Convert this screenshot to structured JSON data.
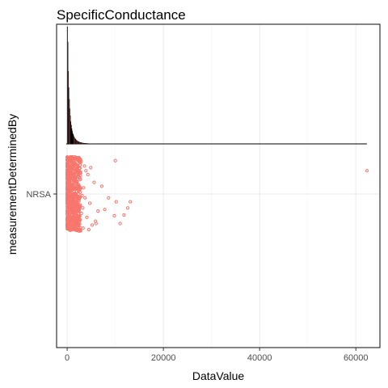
{
  "chart_data": {
    "type": "scatter",
    "title": "SpecificConductance",
    "xlabel": "DataValue",
    "ylabel": "measurementDeterminedBy",
    "x_ticks": [
      0,
      20000,
      40000,
      60000
    ],
    "x_tick_labels": [
      "0",
      "20000",
      "40000",
      "60000"
    ],
    "xlim": [
      -2200,
      65000
    ],
    "categories": [
      "NRSA"
    ],
    "grid": true,
    "legend": "none",
    "series": [
      {
        "category": "NRSA",
        "color": "#F8766D",
        "dense_range": [
          0,
          2800
        ],
        "points": [
          [
            3100,
            0.02
          ],
          [
            3400,
            -0.08
          ],
          [
            3700,
            0.05
          ],
          [
            4100,
            0.3
          ],
          [
            4300,
            -0.25
          ],
          [
            4700,
            0.12
          ],
          [
            4900,
            -0.34
          ],
          [
            5200,
            0.4
          ],
          [
            5600,
            -0.15
          ],
          [
            6000,
            0.38
          ],
          [
            6400,
            0.22
          ],
          [
            2900,
            -0.42
          ],
          [
            3300,
            0.44
          ],
          [
            3600,
            -0.36
          ],
          [
            4500,
            0.46
          ],
          [
            5900,
            0.35
          ],
          [
            3900,
            -0.3
          ],
          [
            2950,
            0.25
          ],
          [
            3250,
            0.18
          ],
          [
            7200,
            -0.1
          ],
          [
            7800,
            0.2
          ],
          [
            8600,
            0.05
          ],
          [
            9800,
            0.28
          ],
          [
            10000,
            -0.43
          ],
          [
            10200,
            0.1
          ],
          [
            11800,
            0.27
          ],
          [
            12600,
            0.18
          ],
          [
            13100,
            0.1
          ],
          [
            11000,
            0.38
          ],
          [
            62300,
            -0.3
          ]
        ]
      }
    ],
    "histogram": {
      "bin_width": 100,
      "bar_fill": "#F8766D",
      "outline": "#000000",
      "relative_counts": [
        1.0,
        0.87,
        0.62,
        0.48,
        0.38,
        0.3,
        0.24,
        0.19,
        0.16,
        0.13,
        0.11,
        0.09,
        0.08,
        0.07,
        0.06,
        0.05,
        0.045,
        0.04,
        0.035,
        0.03,
        0.027,
        0.024,
        0.021,
        0.019,
        0.017,
        0.015,
        0.013,
        0.012,
        0.011,
        0.01,
        0.009,
        0.008,
        0.007,
        0.006,
        0.006,
        0.005,
        0.005,
        0.004,
        0.004,
        0.004,
        0.003,
        0.003,
        0.003,
        0.003,
        0.002,
        0.002,
        0.002,
        0.002,
        0.002,
        0.002,
        0.002,
        0.002,
        0.001,
        0.001,
        0.001,
        0.001,
        0.001,
        0.001,
        0.001,
        0.001
      ],
      "dark_bins": [
        7,
        8,
        9,
        10,
        11,
        12
      ],
      "baseline_extent": [
        -200,
        62300
      ]
    }
  }
}
